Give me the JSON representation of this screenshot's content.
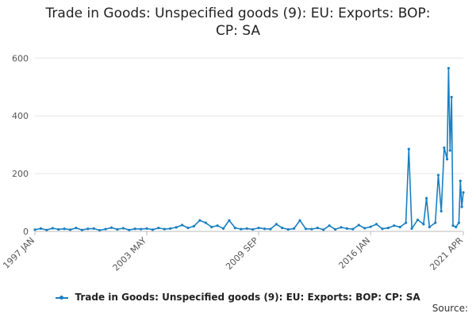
{
  "chart_data": {
    "type": "line",
    "title_lines": [
      "Trade in Goods: Unspecified goods (9): EU: Exports: BOP:",
      "CP: SA"
    ],
    "ylim": [
      0,
      620
    ],
    "yticks": [
      0,
      200,
      400,
      600
    ],
    "xticks": [
      "1997 JAN",
      "2003 MAY",
      "2009 SEP",
      "2016 JAN",
      "2021 APR"
    ],
    "x_range": [
      "1997 JAN",
      "2021 APR"
    ],
    "series": [
      {
        "name": "Trade in Goods: Unspecified goods (9): EU: Exports: BOP: CP: SA",
        "color": "#1a7fc1",
        "points": [
          [
            "1997 JAN",
            6
          ],
          [
            "1997 MAY",
            10
          ],
          [
            "1997 SEP",
            5
          ],
          [
            "1998 JAN",
            11
          ],
          [
            "1998 MAY",
            7
          ],
          [
            "1998 SEP",
            9
          ],
          [
            "1999 JAN",
            6
          ],
          [
            "1999 MAY",
            12
          ],
          [
            "1999 SEP",
            5
          ],
          [
            "2000 JAN",
            9
          ],
          [
            "2000 MAY",
            10
          ],
          [
            "2000 SEP",
            4
          ],
          [
            "2001 JAN",
            8
          ],
          [
            "2001 MAY",
            13
          ],
          [
            "2001 SEP",
            7
          ],
          [
            "2002 JAN",
            11
          ],
          [
            "2002 MAY",
            5
          ],
          [
            "2002 SEP",
            9
          ],
          [
            "2003 JAN",
            8
          ],
          [
            "2003 MAY",
            10
          ],
          [
            "2003 SEP",
            6
          ],
          [
            "2004 JAN",
            12
          ],
          [
            "2004 MAY",
            8
          ],
          [
            "2004 SEP",
            10
          ],
          [
            "2005 JAN",
            14
          ],
          [
            "2005 MAY",
            22
          ],
          [
            "2005 SEP",
            12
          ],
          [
            "2006 JAN",
            18
          ],
          [
            "2006 MAY",
            38
          ],
          [
            "2006 SEP",
            30
          ],
          [
            "2007 JAN",
            15
          ],
          [
            "2007 MAY",
            20
          ],
          [
            "2007 SEP",
            10
          ],
          [
            "2008 JAN",
            38
          ],
          [
            "2008 MAY",
            12
          ],
          [
            "2008 SEP",
            8
          ],
          [
            "2009 JAN",
            10
          ],
          [
            "2009 MAY",
            7
          ],
          [
            "2009 SEP",
            12
          ],
          [
            "2010 JAN",
            9
          ],
          [
            "2010 MAY",
            8
          ],
          [
            "2010 SEP",
            25
          ],
          [
            "2011 JAN",
            12
          ],
          [
            "2011 MAY",
            7
          ],
          [
            "2011 SEP",
            10
          ],
          [
            "2012 JAN",
            38
          ],
          [
            "2012 MAY",
            9
          ],
          [
            "2012 SEP",
            8
          ],
          [
            "2013 JAN",
            12
          ],
          [
            "2013 MAY",
            6
          ],
          [
            "2013 SEP",
            20
          ],
          [
            "2014 JAN",
            7
          ],
          [
            "2014 MAY",
            14
          ],
          [
            "2014 SEP",
            10
          ],
          [
            "2015 JAN",
            8
          ],
          [
            "2015 MAY",
            22
          ],
          [
            "2015 SEP",
            11
          ],
          [
            "2016 JAN",
            16
          ],
          [
            "2016 MAY",
            25
          ],
          [
            "2016 SEP",
            9
          ],
          [
            "2017 JAN",
            12
          ],
          [
            "2017 MAY",
            20
          ],
          [
            "2017 SEP",
            15
          ],
          [
            "2018 JAN",
            30
          ],
          [
            "2018 MAR",
            285
          ],
          [
            "2018 MAY",
            10
          ],
          [
            "2018 SEP",
            40
          ],
          [
            "2019 JAN",
            25
          ],
          [
            "2019 MAR",
            115
          ],
          [
            "2019 MAY",
            15
          ],
          [
            "2019 SEP",
            30
          ],
          [
            "2019 NOV",
            195
          ],
          [
            "2020 JAN",
            70
          ],
          [
            "2020 MAR",
            290
          ],
          [
            "2020 MAY",
            250
          ],
          [
            "2020 JUN",
            565
          ],
          [
            "2020 JUL",
            280
          ],
          [
            "2020 AUG",
            465
          ],
          [
            "2020 SEP",
            20
          ],
          [
            "2020 NOV",
            15
          ],
          [
            "2021 JAN",
            30
          ],
          [
            "2021 FEB",
            175
          ],
          [
            "2021 MAR",
            85
          ],
          [
            "2021 APR",
            135
          ]
        ]
      }
    ],
    "grid": true,
    "legend_position": "bottom"
  },
  "footer": {
    "source_label": "Source:"
  }
}
